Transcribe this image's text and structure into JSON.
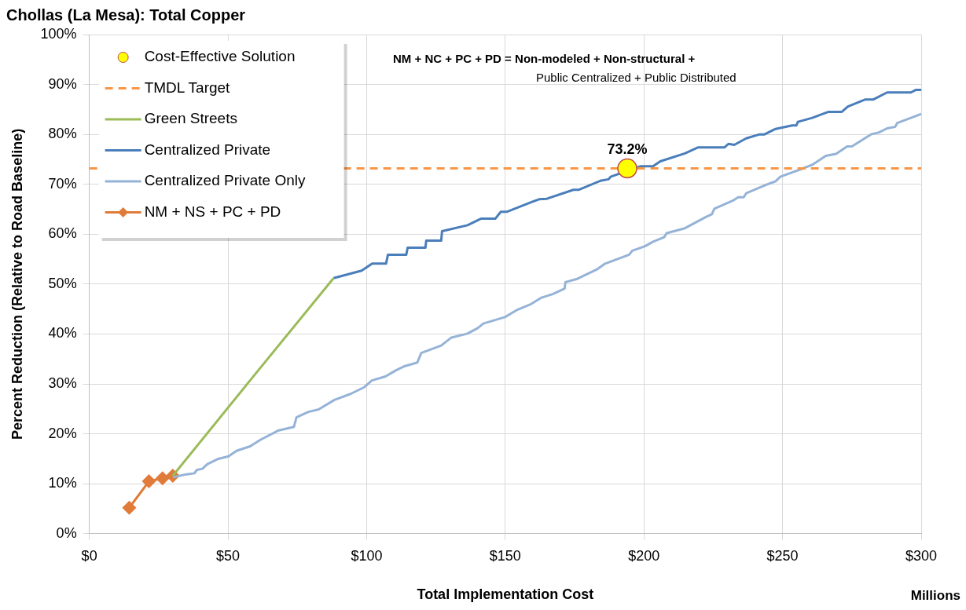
{
  "chart_data": {
    "type": "line",
    "title": "Chollas (La Mesa): Total Copper",
    "xlabel": "Total Implementation Cost",
    "ylabel": "Percent Reduction (Relative to Road Baseline)",
    "annotations": [
      "NM + NC + PC + PD = Non-modeled + Non-structural +",
      "Public Centralized + Public Distributed",
      "Millions"
    ],
    "xlim": [
      0,
      300
    ],
    "xticks": [
      {
        "value": 0,
        "label": "$0"
      },
      {
        "value": 50,
        "label": "$50"
      },
      {
        "value": 100,
        "label": "$100"
      },
      {
        "value": 150,
        "label": "$150"
      },
      {
        "value": 200,
        "label": "$200"
      },
      {
        "value": 250,
        "label": "$250"
      },
      {
        "value": 300,
        "label": "$300"
      }
    ],
    "ylim": [
      0,
      100
    ],
    "yticks": [
      {
        "value": 0,
        "label": "0%"
      },
      {
        "value": 10,
        "label": "10%"
      },
      {
        "value": 20,
        "label": "20%"
      },
      {
        "value": 30,
        "label": "30%"
      },
      {
        "value": 40,
        "label": "40%"
      },
      {
        "value": 50,
        "label": "50%"
      },
      {
        "value": 60,
        "label": "60%"
      },
      {
        "value": 70,
        "label": "70%"
      },
      {
        "value": 80,
        "label": "80%"
      },
      {
        "value": 90,
        "label": "90%"
      },
      {
        "value": 100,
        "label": "100%"
      }
    ],
    "grid": true,
    "legend": "top left",
    "series": [
      {
        "name": "Cost-Effective Solution",
        "type": "scatter",
        "marker": "circle",
        "color": "#ffff00",
        "x": [
          194
        ],
        "values": [
          73.2
        ],
        "value_labels": [
          "73.2%"
        ]
      },
      {
        "name": "TMDL Target",
        "type": "line",
        "line_style": "dashed",
        "marker": "none",
        "color": "#f79646",
        "x": [
          0,
          300
        ],
        "values": [
          73.2,
          73.2
        ]
      },
      {
        "name": "Green Streets",
        "type": "line",
        "marker": "none",
        "color": "#9bbb59",
        "x": [
          30.1,
          59,
          88.1
        ],
        "values": [
          11.6,
          31.4,
          51.2
        ]
      },
      {
        "name": "Centralized Private",
        "type": "line",
        "marker": "none",
        "color": "#4a7ebb",
        "x": [
          88.1,
          98.2,
          102,
          107,
          107.7,
          114.3,
          114.8,
          121.2,
          121.5,
          126.9,
          127.2,
          136.4,
          141.2,
          146.4,
          148.4,
          150.7,
          159.3,
          162.2,
          165,
          174.6,
          176.6,
          184.3,
          187.2,
          188,
          198.7,
          203.3,
          205.9,
          214.8,
          219.6,
          229.1,
          230.5,
          232.6,
          236.9,
          241.7,
          243.5,
          247.5,
          253.5,
          255,
          255.5,
          260.7,
          266.4,
          271.3,
          273.6,
          279.9,
          282.8,
          287.7,
          296.3,
          298,
          300
        ],
        "values": [
          51.2,
          52.7,
          54.1,
          54.1,
          55.9,
          55.9,
          57.3,
          57.3,
          58.7,
          58.7,
          60.6,
          61.8,
          63.1,
          63.1,
          64.5,
          64.5,
          66.4,
          67,
          67.1,
          68.9,
          68.9,
          70.7,
          71,
          71.5,
          73.6,
          73.6,
          74.6,
          76.2,
          77.4,
          77.4,
          78.1,
          77.9,
          79.2,
          80,
          80,
          81.1,
          81.8,
          81.8,
          82.5,
          83.3,
          84.5,
          84.5,
          85.6,
          87,
          87,
          88.4,
          88.4,
          88.9,
          88.9
        ]
      },
      {
        "name": "Centralized Private Only",
        "type": "line",
        "marker": "none",
        "color": "#95b3d7",
        "x": [
          30.1,
          35,
          37.9,
          38.8,
          40.8,
          42.5,
          46.5,
          50.2,
          53.1,
          58,
          61.7,
          68.3,
          73.8,
          74.7,
          79,
          82.7,
          88.4,
          94.2,
          99,
          101.9,
          106.8,
          110.5,
          113.4,
          118.3,
          119.7,
          126.9,
          130.6,
          136.4,
          140.1,
          142.1,
          149.9,
          154.5,
          159.3,
          163.1,
          167.1,
          171.4,
          171.7,
          175.7,
          183.2,
          186,
          194.7,
          195.8,
          200.4,
          203.3,
          207.3,
          208.2,
          214.8,
          222.5,
          224.5,
          225.4,
          232,
          234,
          236,
          236.9,
          244.6,
          247.5,
          249.2,
          257,
          260.7,
          265.6,
          269.3,
          273.3,
          275,
          281.9,
          284.8,
          287.7,
          290.6,
          291.4,
          296.3,
          300
        ],
        "values": [
          11.3,
          11.9,
          12.1,
          12.8,
          13,
          13.9,
          15,
          15.5,
          16.6,
          17.5,
          18.8,
          20.7,
          21.4,
          23.3,
          24.4,
          24.9,
          26.8,
          28,
          29.3,
          30.7,
          31.5,
          32.7,
          33.5,
          34.3,
          36.2,
          37.7,
          39.3,
          40.1,
          41.2,
          42.1,
          43.4,
          44.9,
          46,
          47.3,
          48,
          49.1,
          50.4,
          51,
          53,
          54.1,
          55.9,
          56.7,
          57.6,
          58.5,
          59.4,
          60.2,
          61.2,
          63.5,
          64,
          65.1,
          66.7,
          67.4,
          67.4,
          68.2,
          70,
          70.6,
          71.5,
          73.1,
          73.9,
          75.7,
          76.1,
          77.6,
          77.6,
          80,
          80.4,
          81.2,
          81.5,
          82.3,
          83.3,
          84.1
        ]
      },
      {
        "name": "NM + NS + PC + PD",
        "type": "line",
        "marker": "diamond",
        "color": "#e07b39",
        "x": [
          14.4,
          21.5,
          26.4,
          30.1
        ],
        "values": [
          5.2,
          10.5,
          11.1,
          11.6
        ]
      }
    ]
  }
}
